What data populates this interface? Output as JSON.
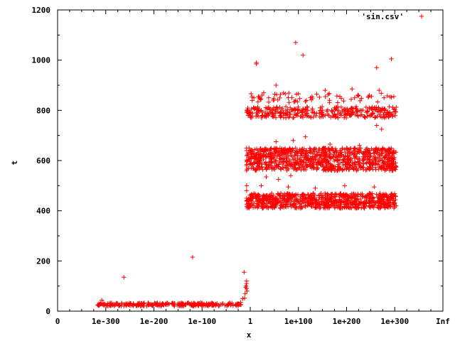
{
  "chart_data": {
    "type": "scatter",
    "xlabel": "x",
    "ylabel": "t",
    "ylim": [
      0,
      1200
    ],
    "y_ticks": [
      0,
      200,
      400,
      600,
      800,
      1000,
      1200
    ],
    "x_ticks": [
      "0",
      "1e-300",
      "1e-200",
      "1e-100",
      "1",
      "1e+100",
      "1e+200",
      "1e+300",
      "Inf"
    ],
    "x_scale": "log10",
    "xlim_log10": [
      -385,
      400
    ],
    "legend_position": "top-right",
    "series": [
      {
        "name": "'sin.csv'",
        "color": "#ff0000",
        "marker": "plus",
        "points": [
          [
            -295,
            44
          ],
          [
            -300,
            28
          ],
          [
            -290,
            26
          ],
          [
            -260,
            25
          ],
          [
            -230,
            27
          ],
          [
            -200,
            26
          ],
          [
            -170,
            25
          ],
          [
            -140,
            27
          ],
          [
            -110,
            26
          ],
          [
            -80,
            25
          ],
          [
            -50,
            27
          ],
          [
            -15,
            26
          ],
          [
            -250,
            135
          ],
          [
            -110,
            215
          ],
          [
            -5,
            155
          ],
          [
            -12,
            35
          ],
          [
            -8,
            50
          ],
          [
            -4,
            52
          ],
          [
            -3,
            70
          ],
          [
            -2,
            95
          ],
          [
            -1,
            100
          ],
          [
            0,
            110
          ],
          [
            0,
            120
          ],
          [
            0,
            90
          ],
          [
            1,
            80
          ],
          [
            0,
            500
          ],
          [
            0,
            480
          ],
          [
            0,
            440
          ],
          [
            0,
            450
          ],
          [
            0,
            425
          ],
          [
            0,
            595
          ],
          [
            0,
            580
          ],
          [
            0,
            560
          ],
          [
            0,
            640
          ],
          [
            0,
            650
          ],
          [
            5,
            650
          ],
          [
            15,
            850
          ],
          [
            25,
            855
          ],
          [
            35,
            870
          ],
          [
            45,
            850
          ],
          [
            60,
            900
          ],
          [
            85,
            850
          ],
          [
            100,
            840
          ],
          [
            130,
            850
          ],
          [
            160,
            880
          ],
          [
            190,
            855
          ],
          [
            220,
            850
          ],
          [
            250,
            860
          ],
          [
            280,
            850
          ],
          [
            300,
            855
          ],
          [
            20,
            990
          ],
          [
            20,
            985
          ],
          [
            100,
            1070
          ],
          [
            115,
            1020
          ],
          [
            215,
            885
          ],
          [
            265,
            970
          ],
          [
            295,
            1005
          ],
          [
            270,
            880
          ],
          [
            275,
            725
          ],
          [
            265,
            740
          ],
          [
            10,
            805
          ],
          [
            30,
            800
          ],
          [
            55,
            810
          ],
          [
            75,
            790
          ],
          [
            100,
            805
          ],
          [
            125,
            800
          ],
          [
            150,
            810
          ],
          [
            175,
            795
          ],
          [
            200,
            805
          ],
          [
            225,
            800
          ],
          [
            250,
            810
          ],
          [
            275,
            800
          ],
          [
            300,
            805
          ],
          [
            5,
            785
          ],
          [
            40,
            780
          ],
          [
            80,
            770
          ],
          [
            120,
            780
          ],
          [
            160,
            780
          ],
          [
            200,
            785
          ],
          [
            240,
            775
          ],
          [
            280,
            790
          ],
          [
            10,
            640
          ],
          [
            40,
            645
          ],
          [
            70,
            640
          ],
          [
            100,
            650
          ],
          [
            130,
            640
          ],
          [
            160,
            645
          ],
          [
            190,
            640
          ],
          [
            220,
            650
          ],
          [
            250,
            640
          ],
          [
            280,
            645
          ],
          [
            300,
            640
          ],
          [
            10,
            610
          ],
          [
            40,
            615
          ],
          [
            70,
            605
          ],
          [
            100,
            620
          ],
          [
            130,
            610
          ],
          [
            160,
            615
          ],
          [
            190,
            605
          ],
          [
            220,
            610
          ],
          [
            250,
            615
          ],
          [
            280,
            610
          ],
          [
            300,
            605
          ],
          [
            10,
            590
          ],
          [
            40,
            585
          ],
          [
            70,
            595
          ],
          [
            100,
            590
          ],
          [
            130,
            585
          ],
          [
            160,
            595
          ],
          [
            190,
            590
          ],
          [
            220,
            585
          ],
          [
            250,
            590
          ],
          [
            280,
            595
          ],
          [
            300,
            585
          ],
          [
            10,
            570
          ],
          [
            40,
            575
          ],
          [
            70,
            565
          ],
          [
            100,
            570
          ],
          [
            130,
            575
          ],
          [
            160,
            565
          ],
          [
            190,
            570
          ],
          [
            220,
            575
          ],
          [
            250,
            565
          ],
          [
            280,
            570
          ],
          [
            300,
            575
          ],
          [
            120,
            695
          ],
          [
            95,
            680
          ],
          [
            60,
            675
          ],
          [
            230,
            660
          ],
          [
            170,
            665
          ],
          [
            40,
            535
          ],
          [
            65,
            525
          ],
          [
            90,
            540
          ],
          [
            10,
            465
          ],
          [
            40,
            460
          ],
          [
            70,
            470
          ],
          [
            100,
            465
          ],
          [
            130,
            460
          ],
          [
            160,
            470
          ],
          [
            190,
            465
          ],
          [
            220,
            460
          ],
          [
            250,
            470
          ],
          [
            280,
            465
          ],
          [
            300,
            460
          ],
          [
            10,
            445
          ],
          [
            40,
            440
          ],
          [
            70,
            450
          ],
          [
            100,
            445
          ],
          [
            130,
            440
          ],
          [
            160,
            450
          ],
          [
            190,
            445
          ],
          [
            220,
            440
          ],
          [
            250,
            450
          ],
          [
            280,
            445
          ],
          [
            300,
            440
          ],
          [
            10,
            425
          ],
          [
            40,
            430
          ],
          [
            70,
            420
          ],
          [
            100,
            425
          ],
          [
            130,
            430
          ],
          [
            160,
            420
          ],
          [
            190,
            425
          ],
          [
            220,
            430
          ],
          [
            250,
            420
          ],
          [
            280,
            425
          ],
          [
            300,
            430
          ],
          [
            5,
            410
          ],
          [
            50,
            415
          ],
          [
            110,
            410
          ],
          [
            180,
            415
          ],
          [
            240,
            410
          ],
          [
            290,
            415
          ],
          [
            30,
            500
          ],
          [
            85,
            495
          ],
          [
            140,
            490
          ],
          [
            200,
            500
          ],
          [
            260,
            495
          ]
        ],
        "bands": [
          {
            "x_log10": [
              -305,
              -10
            ],
            "y": [
              20,
              33
            ],
            "count": 260
          },
          {
            "x_log10": [
              0,
              305
            ],
            "y": [
              410,
              470
            ],
            "count": 750
          },
          {
            "x_log10": [
              0,
              305
            ],
            "y": [
              560,
              650
            ],
            "count": 850
          },
          {
            "x_log10": [
              0,
              305
            ],
            "y": [
              770,
              815
            ],
            "count": 320
          },
          {
            "x_log10": [
              0,
              305
            ],
            "y": [
              830,
              870
            ],
            "count": 60
          }
        ]
      }
    ]
  }
}
